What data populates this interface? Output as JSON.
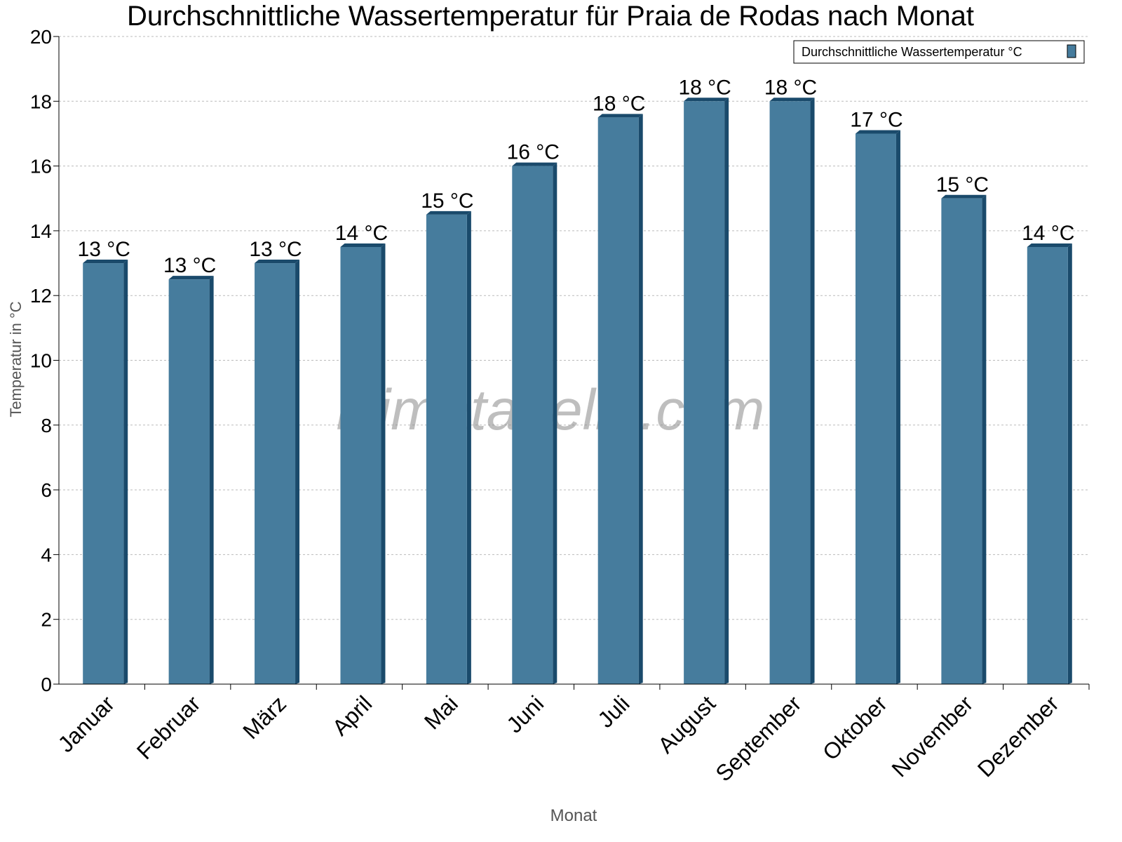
{
  "chart_data": {
    "type": "bar",
    "title": "Durchschnittliche Wassertemperatur für Praia de Rodas nach Monat",
    "xlabel": "Monat",
    "ylabel": "Temperatur in °C",
    "ylim": [
      0,
      20
    ],
    "yticks": [
      0,
      2,
      4,
      6,
      8,
      10,
      12,
      14,
      16,
      18,
      20
    ],
    "grid": true,
    "legend_position": "top-right",
    "categories": [
      "Januar",
      "Februar",
      "März",
      "April",
      "Mai",
      "Juni",
      "Juli",
      "August",
      "September",
      "Oktober",
      "November",
      "Dezember"
    ],
    "series": [
      {
        "name": "Durchschnittliche Wassertemperatur °C",
        "color": "#467c9d",
        "edge_color": "#1a4a6b",
        "values": [
          13,
          12.5,
          13,
          13.5,
          14.5,
          16,
          17.5,
          18,
          18,
          17,
          15,
          13.5
        ],
        "data_labels": [
          "13 °C",
          "13 °C",
          "13 °C",
          "14 °C",
          "15 °C",
          "16 °C",
          "18 °C",
          "18 °C",
          "18 °C",
          "17 °C",
          "15 °C",
          "14 °C"
        ]
      }
    ],
    "watermark": "klimatabelle.com"
  }
}
